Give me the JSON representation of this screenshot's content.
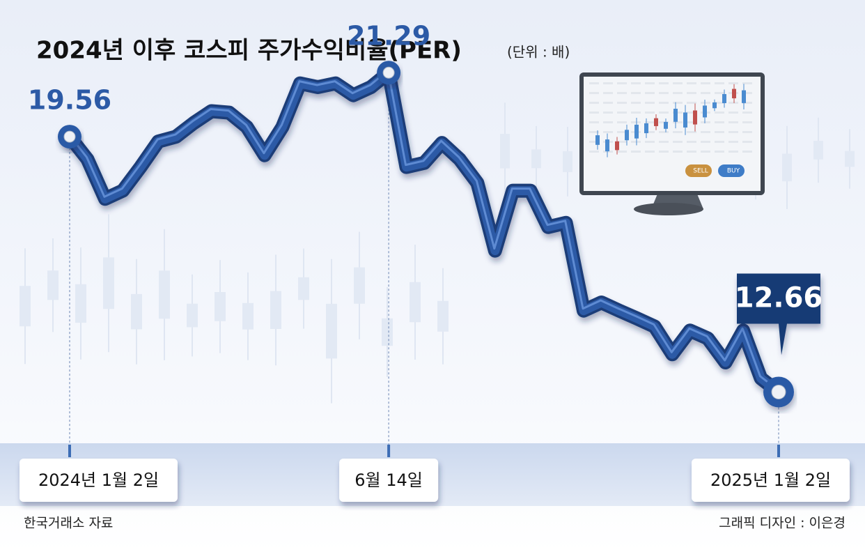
{
  "chart_data": {
    "type": "line",
    "title": "2024년 이후 코스피 주가수익비율(PER)",
    "unit": "(단위 : 배)",
    "source": "한국거래소 자료",
    "credit": "그래픽 디자인 : 이은경",
    "categories": [
      "2024년 1월 2일",
      null,
      null,
      null,
      null,
      null,
      null,
      null,
      null,
      null,
      null,
      null,
      null,
      null,
      null,
      null,
      null,
      null,
      "6월 14일",
      null,
      null,
      null,
      null,
      null,
      null,
      null,
      null,
      null,
      null,
      null,
      null,
      null,
      null,
      null,
      null,
      null,
      null,
      null,
      null,
      null,
      "2025년 1월 2일"
    ],
    "values": [
      19.56,
      18.95,
      17.88,
      18.1,
      18.74,
      19.43,
      19.56,
      19.93,
      20.25,
      20.21,
      19.82,
      19.06,
      19.82,
      21.0,
      20.9,
      21.0,
      20.68,
      20.9,
      21.29,
      18.74,
      18.85,
      19.39,
      18.95,
      18.31,
      16.48,
      18.1,
      18.1,
      17.12,
      17.23,
      14.86,
      15.08,
      14.86,
      14.65,
      14.43,
      13.68,
      14.32,
      14.11,
      13.46,
      14.32,
      13.03,
      12.66
    ],
    "color": "#2c5aa6",
    "ylim": [
      11.2,
      22.5
    ],
    "illustration": {
      "sell": "SELL",
      "buy": "BUY"
    }
  }
}
